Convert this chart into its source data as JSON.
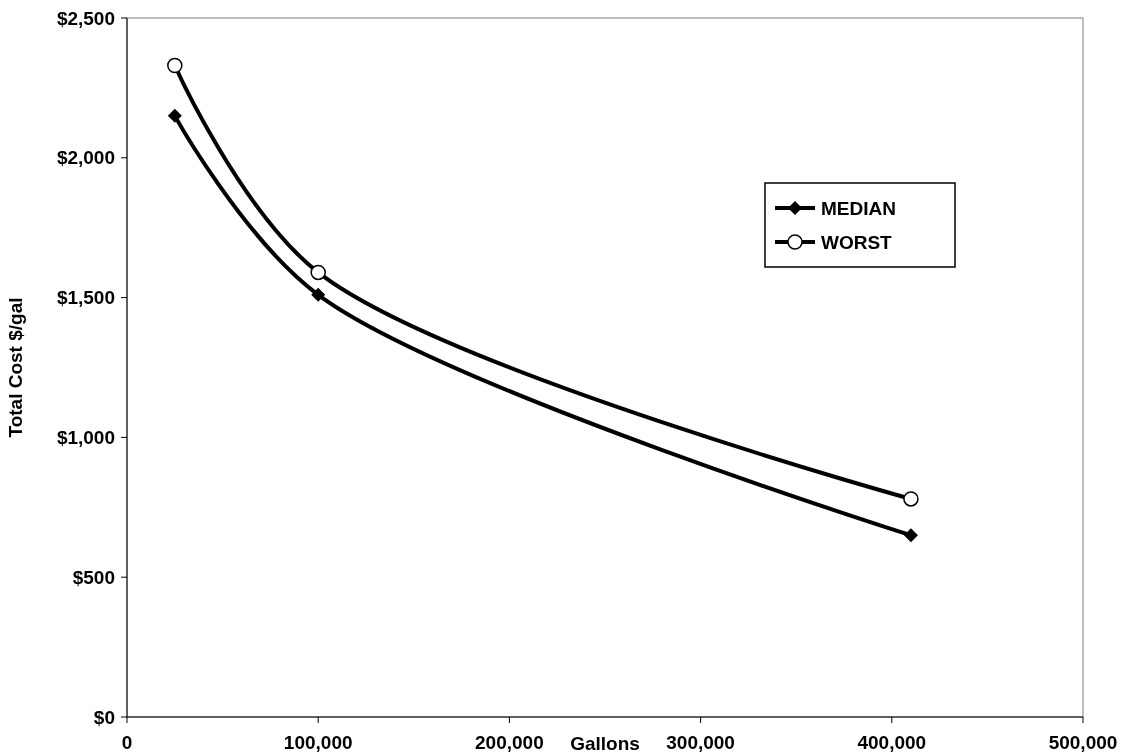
{
  "chart_data": {
    "type": "line",
    "xlabel": "Gallons",
    "ylabel": "Total Cost $/gal",
    "xlim": [
      0,
      500000
    ],
    "xticks": [
      0,
      {
        "value": 100000,
        "label": "100,000"
      },
      {
        "value": 200000,
        "label": "200,000"
      },
      {
        "value": 300000,
        "label": "300,000"
      },
      {
        "value": 400000,
        "label": "400,000"
      },
      {
        "value": 500000,
        "label": "500,000"
      }
    ],
    "ylim": [
      0,
      2500
    ],
    "yticks": [
      {
        "value": 0,
        "label": "$0"
      },
      {
        "value": 500,
        "label": "$500"
      },
      {
        "value": 1000,
        "label": "$1,000"
      },
      {
        "value": 1500,
        "label": "$1,500"
      },
      {
        "value": 2000,
        "label": "$2,000"
      },
      {
        "value": 2500,
        "label": "$2,500"
      }
    ],
    "x": [
      25000,
      100000,
      410000
    ],
    "series": [
      {
        "name": "MEDIAN",
        "color": "#000000",
        "marker": "diamond",
        "values": [
          2150,
          1510,
          650
        ]
      },
      {
        "name": "WORST",
        "color": "#000000",
        "marker": "circle",
        "values": [
          2330,
          1590,
          780
        ]
      }
    ],
    "legend": "right",
    "grid": false,
    "line_style": "solid"
  }
}
